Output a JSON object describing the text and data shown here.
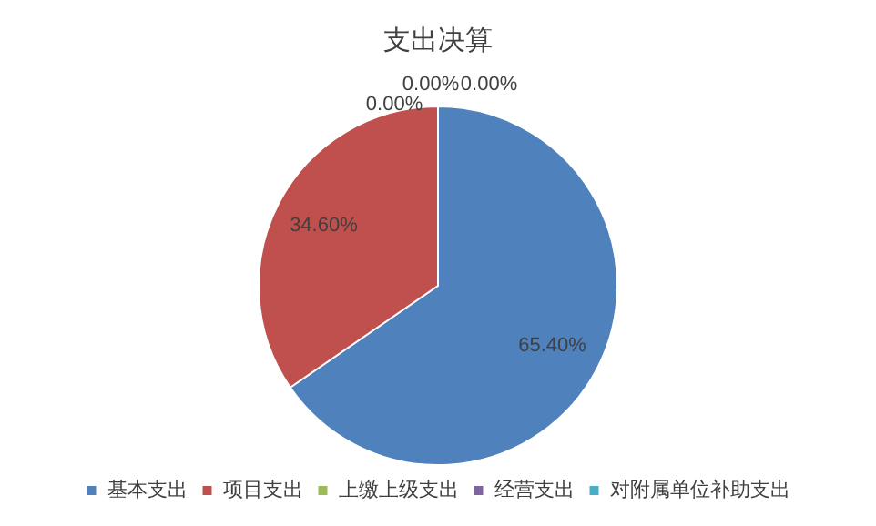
{
  "chart_data": {
    "type": "pie",
    "title": "支出决算",
    "categories": [
      "基本支出",
      "项目支出",
      "上缴上级支出",
      "经营支出",
      "对附属单位补助支出"
    ],
    "values": [
      65.4,
      34.6,
      0,
      0,
      0
    ],
    "colors": [
      "#4f81bd",
      "#c0504d",
      "#9bbb59",
      "#8064a2",
      "#4bacc6"
    ],
    "value_labels": [
      "65.40%",
      "34.60%",
      "0.00%",
      "0.00%",
      "0.00%"
    ],
    "legend": "bottom"
  }
}
